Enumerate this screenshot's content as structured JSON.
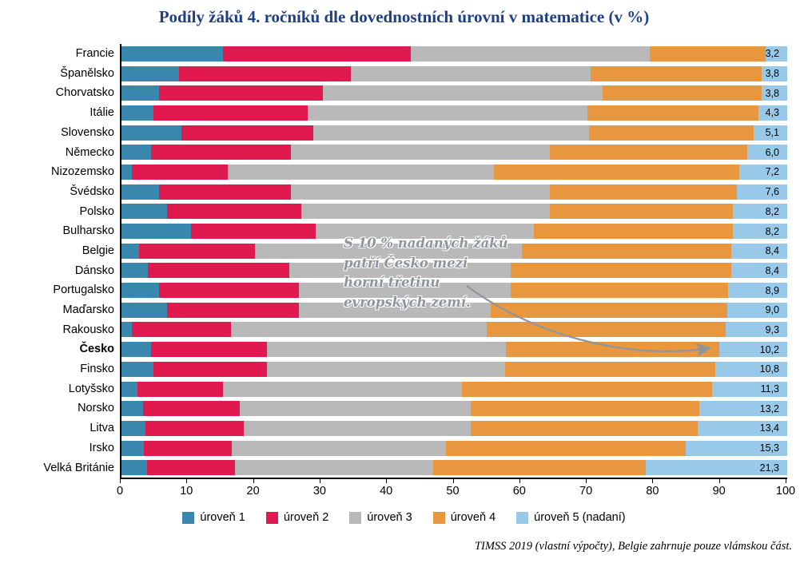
{
  "title": "Podíly žáků 4. ročníků dle dovednostních úrovní v matematice (v %)",
  "footnote": "TIMSS 2019 (vlastní výpočty), Belgie zahrnuje pouze vlámskou část.",
  "annotation": {
    "lines": [
      "S 10 % nadaných žáků",
      "patří Česko mezi",
      "horní třetinu",
      "evropských zemí."
    ]
  },
  "legend": [
    {
      "label": "úroveň 1",
      "color": "#3a87ad"
    },
    {
      "label": "úroveň 2",
      "color": "#e01a4f"
    },
    {
      "label": "úroveň 3",
      "color": "#b9b9b9"
    },
    {
      "label": "úroveň 4",
      "color": "#e9973e"
    },
    {
      "label": "úroveň 5 (nadaní)",
      "color": "#99c9e9"
    }
  ],
  "chart_data": {
    "type": "bar",
    "orientation": "horizontal-stacked",
    "title": "Podíly žáků 4. ročníků dle dovednostních úrovní v matematice (v %)",
    "xlabel": "",
    "ylabel": "",
    "xlim": [
      0,
      100
    ],
    "x_ticks": [
      0,
      10,
      20,
      30,
      40,
      50,
      60,
      70,
      80,
      90,
      100
    ],
    "grid": false,
    "legend_position": "bottom",
    "highlight_category": "Česko",
    "categories": [
      "Francie",
      "Španělsko",
      "Chorvatsko",
      "Itálie",
      "Slovensko",
      "Německo",
      "Nizozemsko",
      "Švédsko",
      "Polsko",
      "Bulharsko",
      "Belgie",
      "Dánsko",
      "Portugalsko",
      "Maďarsko",
      "Rakousko",
      "Česko",
      "Finsko",
      "Lotyšsko",
      "Norsko",
      "Litva",
      "Irsko",
      "Velká Británie"
    ],
    "series": [
      {
        "name": "úroveň 1",
        "color": "#3a87ad",
        "values": [
          15.2,
          8.6,
          5.6,
          4.8,
          9.0,
          4.4,
          1.6,
          5.6,
          6.8,
          10.4,
          2.6,
          4.0,
          5.6,
          6.8,
          1.6,
          4.4,
          4.8,
          2.4,
          3.2,
          3.6,
          3.4,
          3.8
        ]
      },
      {
        "name": "úroveň 2",
        "color": "#e01a4f",
        "values": [
          28.2,
          25.8,
          24.6,
          23.2,
          19.8,
          21.0,
          14.4,
          19.8,
          20.2,
          18.8,
          17.4,
          21.2,
          21.0,
          19.8,
          14.8,
          17.4,
          17.0,
          12.8,
          14.6,
          14.8,
          13.2,
          13.2
        ]
      },
      {
        "name": "úroveň 3",
        "color": "#b9b9b9",
        "values": [
          36.0,
          36.1,
          42.1,
          42.0,
          41.4,
          39.0,
          40.0,
          39.0,
          37.4,
          32.8,
          40.2,
          33.3,
          31.9,
          28.9,
          38.5,
          36.0,
          35.8,
          36.0,
          34.7,
          34.1,
          32.2,
          29.8
        ]
      },
      {
        "name": "úroveň 4",
        "color": "#e9973e",
        "values": [
          17.4,
          25.7,
          23.9,
          25.7,
          24.7,
          29.6,
          36.8,
          28.0,
          27.4,
          29.8,
          31.4,
          33.1,
          32.6,
          35.5,
          35.8,
          32.0,
          31.6,
          37.5,
          34.3,
          34.1,
          35.9,
          31.9
        ]
      },
      {
        "name": "úroveň 5 (nadaní)",
        "color": "#99c9e9",
        "values": [
          3.2,
          3.8,
          3.8,
          4.3,
          5.1,
          6.0,
          7.2,
          7.6,
          8.2,
          8.2,
          8.4,
          8.4,
          8.9,
          9.0,
          9.3,
          10.2,
          10.8,
          11.3,
          13.2,
          13.4,
          15.3,
          21.3
        ],
        "labels": [
          "3,2",
          "3,8",
          "3,8",
          "4,3",
          "5,1",
          "6,0",
          "7,2",
          "7,6",
          "8,2",
          "8,2",
          "8,4",
          "8,4",
          "8,9",
          "9,0",
          "9,3",
          "10,2",
          "10,8",
          "11,3",
          "13,2",
          "13,4",
          "15,3",
          "21,3"
        ]
      }
    ]
  }
}
